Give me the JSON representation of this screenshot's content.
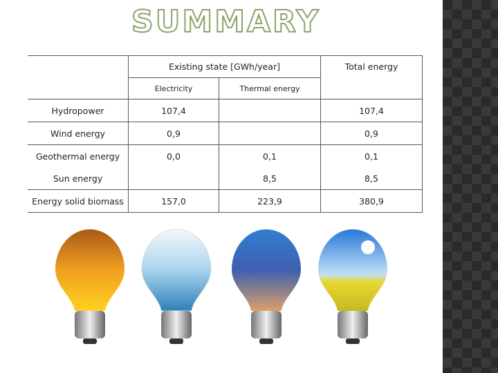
{
  "header": {
    "title": "SUMMARY"
  },
  "table": {
    "header": {
      "existing": "Existing state [GWh/year]",
      "total": "Total energy",
      "electricity": "Electricity",
      "thermal": "Thermal energy"
    },
    "rows": [
      {
        "name": "Hydropower",
        "electricity": "107,4",
        "total": "107,4"
      },
      {
        "name": "Wind energy",
        "electricity": "0,9",
        "total": "0,9"
      },
      {
        "name": "Geothermal energy",
        "electricity": "0,0",
        "thermal": "0,1",
        "total": "0,1"
      },
      {
        "name": "Sun energy",
        "thermal": "8,5",
        "total": "8,5"
      },
      {
        "name": "Energy solid biomass",
        "electricity": "157,0",
        "thermal": "223,9",
        "total": "380,9"
      }
    ]
  }
}
